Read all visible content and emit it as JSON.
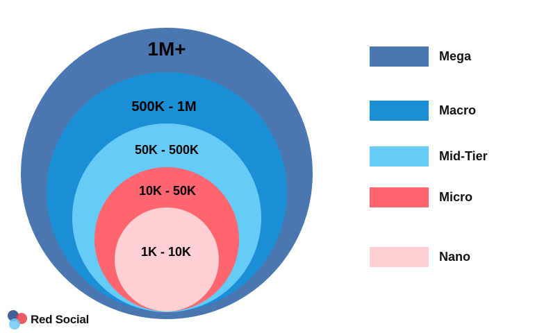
{
  "tiers": [
    {
      "name": "Mega",
      "range": "1M+",
      "color": "#4b77b1"
    },
    {
      "name": "Macro",
      "range": "500K - 1M",
      "color": "#1a8fd6"
    },
    {
      "name": "Mid-Tier",
      "range": "50K - 500K",
      "color": "#66ccf7"
    },
    {
      "name": "Micro",
      "range": "10K - 50K",
      "color": "#ff6670"
    },
    {
      "name": "Nano",
      "range": "1K - 10K",
      "color": "#ffd0d3"
    }
  ],
  "brand": {
    "name": "Red Social",
    "logo_colors": [
      "#2d4f8f",
      "#e8404a",
      "#6fc9f3"
    ]
  }
}
